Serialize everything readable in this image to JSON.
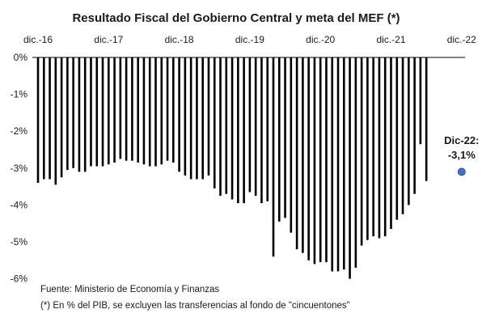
{
  "chart_data": {
    "type": "bar",
    "title": "Resultado Fiscal del Gobierno Central y meta del MEF (*)",
    "x_tick_labels": [
      "dic.-16",
      "dic.-17",
      "dic.-18",
      "dic.-19",
      "dic.-20",
      "dic.-21",
      "dic.-22"
    ],
    "y_tick_labels": [
      "0%",
      "-1%",
      "-2%",
      "-3%",
      "-4%",
      "-5%",
      "-6%"
    ],
    "ylim": [
      -6,
      0
    ],
    "grid": false,
    "series": [
      {
        "start": "dic.-16",
        "values": [
          -3.4,
          -3.3,
          -3.3,
          -3.45,
          -3.25,
          -3.05,
          -3.0,
          -3.1,
          -3.1,
          -2.95,
          -2.95,
          -2.95,
          -2.9,
          -2.85,
          -2.75,
          -2.8,
          -2.8,
          -2.85,
          -2.9,
          -2.95,
          -2.95,
          -2.9,
          -2.8,
          -2.85,
          -3.1,
          -3.2,
          -3.3,
          -3.3,
          -3.3,
          -3.2,
          -3.55,
          -3.75,
          -3.7,
          -3.85,
          -3.95,
          -3.95,
          -3.65,
          -3.75,
          -3.95,
          -3.9,
          -5.4,
          -4.45,
          -4.35,
          -4.75,
          -5.2,
          -5.3,
          -5.5,
          -5.6,
          -5.55,
          -5.55,
          -5.8,
          -5.8,
          -5.75,
          -6.0,
          -5.7,
          -5.1,
          -4.95,
          -4.85,
          -4.9,
          -4.85,
          -4.65,
          -4.4,
          -4.25,
          -4.0,
          -3.7,
          -2.35,
          -3.35
        ]
      }
    ],
    "target": {
      "label_line1": "Dic-22:",
      "label_line2": "-3,1%",
      "x": "dic.-22",
      "value": -3.1
    },
    "notes": [
      "Fuente: Ministerio de Economía y Finanzas",
      "(*) En % del PIB, se excluyen las transferencias al fondo de \"cincuentones\""
    ],
    "colors": {
      "bars": "#000000",
      "target": "#4472C4",
      "target_edge": "#2F528F",
      "axis": "#000000"
    }
  }
}
